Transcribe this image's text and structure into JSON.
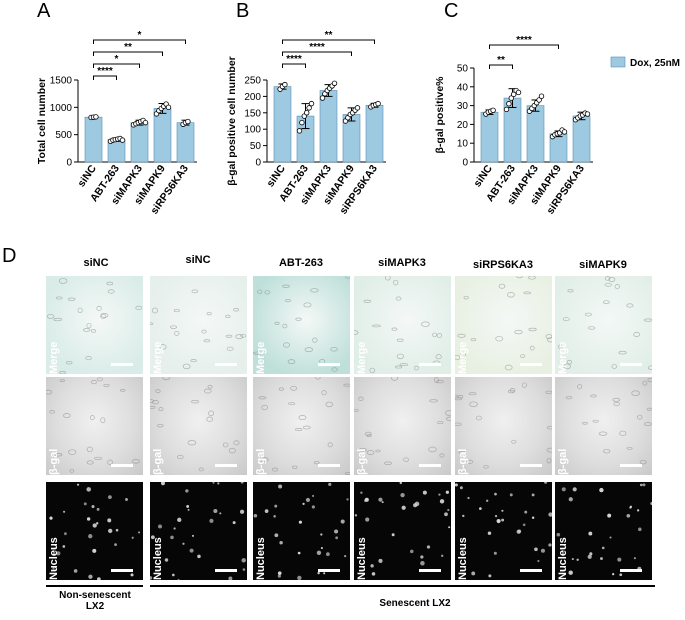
{
  "panels": {
    "A": "A",
    "B": "B",
    "C": "C",
    "D": "D"
  },
  "colors": {
    "bar": "#9ecae1",
    "bar_edge": "#5a8fb5",
    "merge_bg": "#e3efeb",
    "bgal_bg": "#dadada",
    "nucleus_bg": "#070707"
  },
  "legend": {
    "label": "Dox, 25nM"
  },
  "chart_data": [
    {
      "type": "bar",
      "panel": "A",
      "categories": [
        "siNC",
        "ABT-263",
        "siMAPK3",
        "siMAPK9",
        "siRPS6KA3"
      ],
      "values": [
        820,
        410,
        720,
        980,
        720
      ],
      "errors": [
        15,
        30,
        45,
        90,
        45
      ],
      "points": [
        [
          815,
          820,
          825
        ],
        [
          380,
          400,
          410,
          420,
          430,
          400
        ],
        [
          680,
          700,
          720,
          740,
          760,
          720
        ],
        [
          880,
          940,
          980,
          1020,
          1060,
          1000
        ],
        [
          690,
          720,
          740
        ]
      ],
      "ylabel": "Total cell number",
      "ylim": [
        0,
        1500
      ],
      "yticks": [
        0,
        500,
        1000,
        1500
      ],
      "significance": [
        {
          "from": 0,
          "to": 1,
          "label": "****"
        },
        {
          "from": 0,
          "to": 2,
          "label": "*"
        },
        {
          "from": 0,
          "to": 3,
          "label": "**"
        },
        {
          "from": 0,
          "to": 4,
          "label": "*"
        }
      ]
    },
    {
      "type": "bar",
      "panel": "B",
      "categories": [
        "siNC",
        "ABT-263",
        "siMAPK3",
        "siMAPK9",
        "siRPS6KA3"
      ],
      "values": [
        230,
        140,
        218,
        145,
        173
      ],
      "errors": [
        8,
        38,
        18,
        20,
        6
      ],
      "points": [
        [
          222,
          230,
          236
        ],
        [
          95,
          120,
          140,
          150,
          165,
          178
        ],
        [
          195,
          208,
          218,
          225,
          232,
          240
        ],
        [
          125,
          135,
          145,
          150,
          158,
          165
        ],
        [
          168,
          172,
          175,
          178
        ]
      ],
      "ylabel": "β-gal positive cell number",
      "ylim": [
        0,
        250
      ],
      "yticks": [
        0,
        50,
        100,
        150,
        200,
        250
      ],
      "significance": [
        {
          "from": 0,
          "to": 1,
          "label": "****"
        },
        {
          "from": 0,
          "to": 3,
          "label": "****"
        },
        {
          "from": 0,
          "to": 4,
          "label": "**"
        }
      ]
    },
    {
      "type": "bar",
      "panel": "C",
      "categories": [
        "siNC",
        "ABT-263",
        "siMAPK3",
        "siMAPK9",
        "siRPS6KA3"
      ],
      "values": [
        26.5,
        34,
        30,
        15,
        24.5
      ],
      "errors": [
        1.2,
        5,
        3,
        1.5,
        2
      ],
      "points": [
        [
          25.5,
          26.5,
          27,
          27.5
        ],
        [
          28,
          31,
          34,
          36,
          38,
          37
        ],
        [
          27,
          28.5,
          30,
          31.5,
          33,
          35
        ],
        [
          13.5,
          14.5,
          15,
          15.5,
          17,
          16
        ],
        [
          22.5,
          23.5,
          24.5,
          25,
          26,
          25.5
        ]
      ],
      "ylabel": "β-gal positive%",
      "ylim": [
        0,
        50
      ],
      "yticks": [
        0,
        10,
        20,
        30,
        40,
        50
      ],
      "legend": "Dox, 25nM",
      "significance": [
        {
          "from": 0,
          "to": 1,
          "label": "**"
        },
        {
          "from": 0,
          "to": 3,
          "label": "****"
        }
      ]
    }
  ],
  "microscopy": {
    "columns": [
      "siNC",
      "siNC",
      "ABT-263",
      "siMAPK3",
      "siRPS6KA3",
      "siMAPK9"
    ],
    "rows": [
      "Merge",
      "β-gal",
      "Nucleus"
    ],
    "groups": [
      {
        "line1": "Non-senescent",
        "line2": "LX2"
      },
      {
        "line1": "Senescent LX2",
        "line2": ""
      }
    ]
  }
}
